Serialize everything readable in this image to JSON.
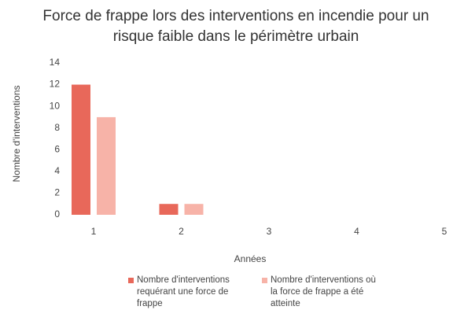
{
  "chart_data": {
    "type": "bar",
    "title": "Force de frappe lors des interventions en incendie pour un risque faible dans le périmètre urbain",
    "x_label": "Années",
    "y_label": "Nombre d'interventions",
    "categories": [
      "1",
      "2",
      "3",
      "4",
      "5"
    ],
    "series": [
      {
        "name": "Nombre d'interventions requérant une force de frappe",
        "color": "#e8685a",
        "values": [
          12,
          1,
          0,
          0,
          0
        ]
      },
      {
        "name": "Nombre d'interventions où la force de frappe a été atteinte",
        "color": "#f7b3a8",
        "values": [
          9,
          1,
          0,
          0,
          0
        ]
      }
    ],
    "ylim": [
      0,
      14
    ],
    "yticks": [
      0,
      2,
      4,
      6,
      8,
      10,
      12,
      14
    ],
    "grid": false,
    "legend": "bottom"
  }
}
